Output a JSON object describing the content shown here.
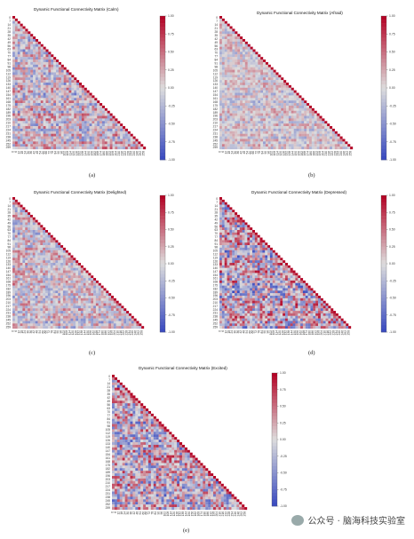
{
  "chart_data": [
    {
      "type": "heatmap",
      "title": "Dynamic Functional Connectivity Matrix (Calm)",
      "caption": "(a)",
      "y_tick_labels": [
        "0",
        "7",
        "14",
        "21",
        "28",
        "35",
        "42",
        "49",
        "56",
        "63",
        "70",
        "77",
        "84",
        "91",
        "98",
        "105",
        "112",
        "119",
        "126",
        "133",
        "140",
        "147",
        "154",
        "161",
        "168",
        "175",
        "182",
        "189",
        "196",
        "203",
        "210",
        "217",
        "224",
        "231",
        "238",
        "245",
        "252",
        "259"
      ],
      "x_tick_labels": [
        "0",
        "6",
        "12",
        "18",
        "24",
        "30",
        "36",
        "42",
        "48",
        "54",
        "60",
        "66",
        "72",
        "78",
        "84",
        "90",
        "96",
        "102",
        "108",
        "114",
        "120",
        "126",
        "132",
        "138",
        "144",
        "150",
        "156",
        "162",
        "168",
        "174",
        "180",
        "186",
        "192",
        "198",
        "204",
        "210",
        "216",
        "222",
        "228",
        "234",
        "240",
        "246",
        "252",
        "258"
      ],
      "colorbar_ticks": [
        "1.00",
        "0.75",
        "0.50",
        "0.25",
        "0.00",
        "-0.25",
        "-0.50",
        "-0.75",
        "-1.00"
      ],
      "vmin": -1,
      "vmax": 1,
      "mask": "upper-triangle",
      "intensity": 0.55,
      "colormap": "coolwarm"
    },
    {
      "type": "heatmap",
      "title": "Dynamic Functional Connectivity Matrix (Afraid)",
      "caption": "(b)",
      "y_tick_labels": [
        "0",
        "7",
        "14",
        "21",
        "28",
        "35",
        "42",
        "49",
        "56",
        "63",
        "70",
        "77",
        "84",
        "91",
        "98",
        "105",
        "112",
        "119",
        "126",
        "133",
        "140",
        "147",
        "154",
        "161",
        "168",
        "175",
        "182",
        "189",
        "196",
        "203",
        "210",
        "217",
        "224",
        "231",
        "238",
        "245",
        "252",
        "259"
      ],
      "x_tick_labels": [
        "0",
        "6",
        "12",
        "18",
        "24",
        "30",
        "36",
        "42",
        "48",
        "54",
        "60",
        "66",
        "72",
        "78",
        "84",
        "90",
        "96",
        "102",
        "108",
        "114",
        "120",
        "126",
        "132",
        "138",
        "144",
        "150",
        "156",
        "162",
        "168",
        "174",
        "180",
        "186",
        "192",
        "198",
        "204",
        "210",
        "216",
        "222",
        "228",
        "234",
        "240",
        "246",
        "252",
        "258"
      ],
      "colorbar_ticks": [
        "1.00",
        "0.75",
        "0.50",
        "0.25",
        "0.00",
        "-0.25",
        "-0.50",
        "-0.75",
        "-1.00"
      ],
      "vmin": -1,
      "vmax": 1,
      "mask": "upper-triangle",
      "intensity": 0.35,
      "colormap": "coolwarm"
    },
    {
      "type": "heatmap",
      "title": "Dynamic Functional Connectivity Matrix (Delighted)",
      "caption": "(c)",
      "y_tick_labels": [
        "0",
        "7",
        "14",
        "21",
        "28",
        "35",
        "42",
        "49",
        "56",
        "63",
        "70",
        "77",
        "84",
        "91",
        "98",
        "105",
        "112",
        "119",
        "126",
        "133",
        "140",
        "147",
        "154",
        "161",
        "168",
        "175",
        "182",
        "189",
        "196",
        "203",
        "210",
        "217",
        "224",
        "231",
        "238",
        "245",
        "252",
        "259"
      ],
      "x_tick_labels": [
        "0",
        "6",
        "12",
        "18",
        "24",
        "30",
        "36",
        "42",
        "48",
        "54",
        "60",
        "66",
        "72",
        "78",
        "84",
        "90",
        "96",
        "102",
        "108",
        "114",
        "120",
        "126",
        "132",
        "138",
        "144",
        "150",
        "156",
        "162",
        "168",
        "174",
        "180",
        "186",
        "192",
        "198",
        "204",
        "210",
        "216",
        "222",
        "228",
        "234",
        "240",
        "246",
        "252",
        "258"
      ],
      "colorbar_ticks": [
        "1.00",
        "0.75",
        "0.50",
        "0.25",
        "0.00",
        "-0.25",
        "-0.50",
        "-0.75",
        "-1.00"
      ],
      "vmin": -1,
      "vmax": 1,
      "mask": "upper-triangle",
      "intensity": 0.5,
      "colormap": "coolwarm"
    },
    {
      "type": "heatmap",
      "title": "Dynamic Functional Connectivity Matrix (Depressed)",
      "caption": "(d)",
      "y_tick_labels": [
        "0",
        "7",
        "14",
        "21",
        "28",
        "35",
        "42",
        "49",
        "56",
        "63",
        "70",
        "77",
        "84",
        "91",
        "98",
        "105",
        "112",
        "119",
        "126",
        "133",
        "140",
        "147",
        "154",
        "161",
        "168",
        "175",
        "182",
        "189",
        "196",
        "203",
        "210",
        "217",
        "224",
        "231",
        "238",
        "245",
        "252",
        "259"
      ],
      "x_tick_labels": [
        "0",
        "6",
        "12",
        "18",
        "24",
        "30",
        "36",
        "42",
        "48",
        "54",
        "60",
        "66",
        "72",
        "78",
        "84",
        "90",
        "96",
        "102",
        "108",
        "114",
        "120",
        "126",
        "132",
        "138",
        "144",
        "150",
        "156",
        "162",
        "168",
        "174",
        "180",
        "186",
        "192",
        "198",
        "204",
        "210",
        "216",
        "222",
        "228",
        "234",
        "240",
        "246",
        "252",
        "258"
      ],
      "colorbar_ticks": [
        "1.00",
        "0.75",
        "0.50",
        "0.25",
        "0.00",
        "-0.25",
        "-0.50",
        "-0.75",
        "-1.00"
      ],
      "vmin": -1,
      "vmax": 1,
      "mask": "upper-triangle",
      "intensity": 0.8,
      "colormap": "coolwarm"
    },
    {
      "type": "heatmap",
      "title": "Dynamic Functional Connectivity Matrix (Excited)",
      "caption": "(e)",
      "y_tick_labels": [
        "0",
        "7",
        "14",
        "21",
        "28",
        "35",
        "42",
        "49",
        "56",
        "63",
        "70",
        "77",
        "84",
        "91",
        "98",
        "105",
        "112",
        "119",
        "126",
        "133",
        "140",
        "147",
        "154",
        "161",
        "168",
        "175",
        "182",
        "189",
        "196",
        "203",
        "210",
        "217",
        "224",
        "231",
        "238",
        "245",
        "252",
        "259"
      ],
      "x_tick_labels": [
        "0",
        "6",
        "12",
        "18",
        "24",
        "30",
        "36",
        "42",
        "48",
        "54",
        "60",
        "66",
        "72",
        "78",
        "84",
        "90",
        "96",
        "102",
        "108",
        "114",
        "120",
        "126",
        "132",
        "138",
        "144",
        "150",
        "156",
        "162",
        "168",
        "174",
        "180",
        "186",
        "192",
        "198",
        "204",
        "210",
        "216",
        "222",
        "228",
        "234",
        "240",
        "246",
        "252",
        "258"
      ],
      "colorbar_ticks": [
        "1.00",
        "0.75",
        "0.50",
        "0.25",
        "0.00",
        "-0.25",
        "-0.50",
        "-0.75",
        "-1.00"
      ],
      "vmin": -1,
      "vmax": 1,
      "mask": "upper-triangle",
      "intensity": 0.75,
      "colormap": "coolwarm"
    }
  ],
  "watermark": "公众号 · 脑海科技实验室"
}
